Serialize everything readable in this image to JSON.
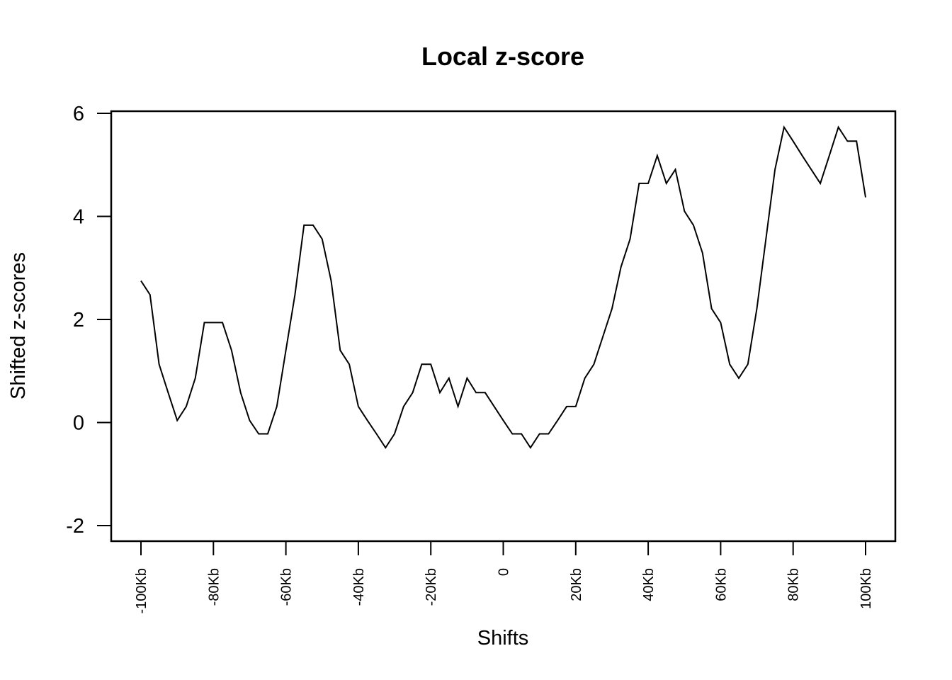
{
  "chart_data": {
    "type": "line",
    "title": "Local z-score",
    "xlabel": "Shifts",
    "ylabel": "Shifted z-scores",
    "xlim": [
      -100,
      100
    ],
    "ylim": [
      -2,
      6
    ],
    "grid": false,
    "legend": "none",
    "x_ticks": [
      {
        "value": -100,
        "label": "-100Kb"
      },
      {
        "value": -80,
        "label": "-80Kb"
      },
      {
        "value": -60,
        "label": "-60Kb"
      },
      {
        "value": -40,
        "label": "-40Kb"
      },
      {
        "value": -20,
        "label": "-20Kb"
      },
      {
        "value": 0,
        "label": "0"
      },
      {
        "value": 20,
        "label": "20Kb"
      },
      {
        "value": 40,
        "label": "40Kb"
      },
      {
        "value": 60,
        "label": "60Kb"
      },
      {
        "value": 80,
        "label": "80Kb"
      },
      {
        "value": 100,
        "label": "100Kb"
      }
    ],
    "y_ticks": [
      {
        "value": -2,
        "label": "-2"
      },
      {
        "value": 0,
        "label": "0"
      },
      {
        "value": 2,
        "label": "2"
      },
      {
        "value": 4,
        "label": "4"
      },
      {
        "value": 6,
        "label": "6"
      }
    ],
    "series": [
      {
        "color": "#000000",
        "x": [
          -100,
          -97.5,
          -95,
          -92.5,
          -90,
          -87.5,
          -85,
          -82.5,
          -80,
          -77.5,
          -75,
          -72.5,
          -70,
          -67.5,
          -65,
          -62.5,
          -60,
          -57.5,
          -55,
          -52.5,
          -50,
          -47.5,
          -45,
          -42.5,
          -40,
          -37.5,
          -35,
          -32.5,
          -30,
          -27.5,
          -25,
          -22.5,
          -20,
          -17.5,
          -15,
          -12.5,
          -10,
          -7.5,
          -5,
          -2.5,
          0,
          2.5,
          5,
          7.5,
          10,
          12.5,
          15,
          17.5,
          20,
          22.5,
          25,
          27.5,
          30,
          32.5,
          35,
          37.5,
          40,
          42.5,
          45,
          47.5,
          50,
          52.5,
          55,
          57.5,
          60,
          62.5,
          65,
          67.5,
          70,
          72.5,
          75,
          77.5,
          80,
          82.5,
          85,
          87.5,
          90,
          92.5,
          95,
          97.5,
          100
        ],
        "y": [
          2.75,
          2.48,
          1.13,
          0.58,
          0.04,
          0.31,
          0.86,
          1.94,
          1.94,
          1.94,
          1.4,
          0.58,
          0.04,
          -0.22,
          -0.22,
          0.31,
          1.4,
          2.48,
          3.83,
          3.83,
          3.56,
          2.75,
          1.4,
          1.13,
          0.31,
          0.04,
          -0.22,
          -0.49,
          -0.22,
          0.31,
          0.58,
          1.13,
          1.13,
          0.58,
          0.86,
          0.31,
          0.86,
          0.58,
          0.58,
          0.31,
          0.04,
          -0.22,
          -0.22,
          -0.49,
          -0.22,
          -0.22,
          0.04,
          0.31,
          0.31,
          0.86,
          1.13,
          1.67,
          2.21,
          3.02,
          3.56,
          4.64,
          4.64,
          5.18,
          4.64,
          4.91,
          4.1,
          3.83,
          3.29,
          2.21,
          1.94,
          1.13,
          0.86,
          1.13,
          2.21,
          3.56,
          4.91,
          5.73,
          5.46,
          5.18,
          4.91,
          4.64,
          5.18,
          5.73,
          5.46,
          5.46,
          4.37
        ]
      }
    ]
  }
}
